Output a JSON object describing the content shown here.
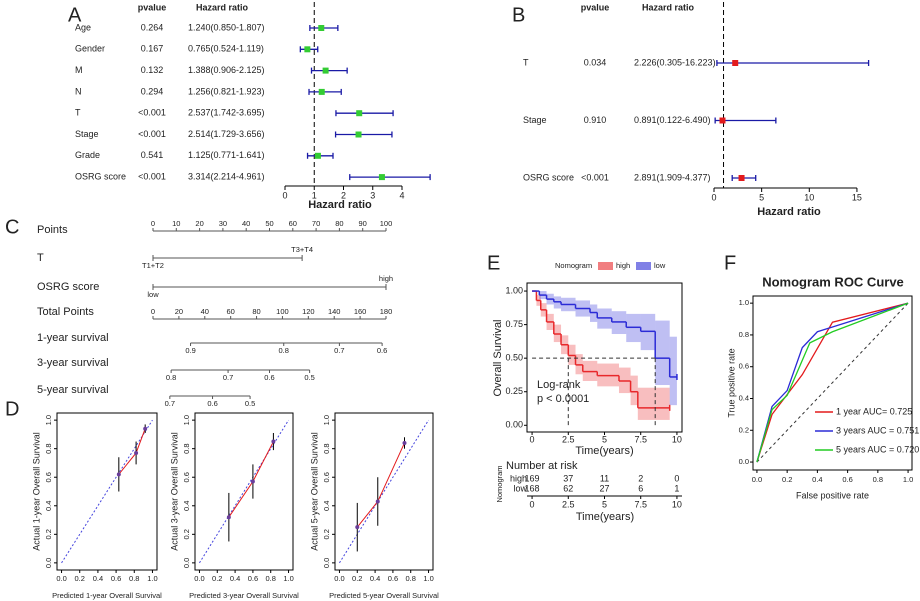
{
  "chart_data": [
    {
      "type": "forest",
      "panel": "A",
      "headers": [
        "pvalue",
        "Hazard ratio"
      ],
      "xlabel": "Hazard ratio",
      "xlim": [
        0,
        5
      ],
      "xticks": [
        0,
        1,
        2,
        3,
        4
      ],
      "reference": 1,
      "color": "#33cc33",
      "ci_color": "#1a1aa6",
      "rows": [
        {
          "name": "Age",
          "pvalue": "0.264",
          "hr": 1.24,
          "lower": 0.85,
          "upper": 1.807,
          "label": "1.240(0.850-1.807)"
        },
        {
          "name": "Gender",
          "pvalue": "0.167",
          "hr": 0.765,
          "lower": 0.524,
          "upper": 1.119,
          "label": "0.765(0.524-1.119)"
        },
        {
          "name": "M",
          "pvalue": "0.132",
          "hr": 1.388,
          "lower": 0.906,
          "upper": 2.125,
          "label": "1.388(0.906-2.125)"
        },
        {
          "name": "N",
          "pvalue": "0.294",
          "hr": 1.256,
          "lower": 0.821,
          "upper": 1.923,
          "label": "1.256(0.821-1.923)"
        },
        {
          "name": "T",
          "pvalue": "<0.001",
          "pvalue_color": "#e31a1c",
          "hr": 2.537,
          "lower": 1.742,
          "upper": 3.695,
          "label": "2.537(1.742-3.695)"
        },
        {
          "name": "Stage",
          "pvalue": "<0.001",
          "pvalue_color": "#e31a1c",
          "hr": 2.514,
          "lower": 1.729,
          "upper": 3.656,
          "label": "2.514(1.729-3.656)"
        },
        {
          "name": "Grade",
          "pvalue": "0.541",
          "hr": 1.125,
          "lower": 0.771,
          "upper": 1.641,
          "label": "1.125(0.771-1.641)"
        },
        {
          "name": "OSRG score",
          "pvalue": "<0.001",
          "pvalue_color": "#e31a1c",
          "hr": 3.314,
          "lower": 2.214,
          "upper": 4.961,
          "label": "3.314(2.214-4.961)"
        }
      ]
    },
    {
      "type": "forest",
      "panel": "B",
      "headers": [
        "pvalue",
        "Hazard ratio"
      ],
      "xlabel": "Hazard ratio",
      "xlim": [
        0,
        17
      ],
      "xticks": [
        0,
        5,
        10,
        15
      ],
      "reference": 1,
      "color": "#e31a1c",
      "ci_color": "#1a1aa6",
      "rows": [
        {
          "name": "T",
          "pvalue": "0.034",
          "pvalue_color": "#e31a1c",
          "hr": 2.226,
          "lower": 0.305,
          "upper": 16.223,
          "label": "2.226(0.305-16.223)"
        },
        {
          "name": "Stage",
          "pvalue": "0.910",
          "hr": 0.891,
          "lower": 0.122,
          "upper": 6.49,
          "label": "0.891(0.122-6.490)"
        },
        {
          "name": "OSRG score",
          "pvalue": "<0.001",
          "pvalue_color": "#e31a1c",
          "hr": 2.891,
          "lower": 1.909,
          "upper": 4.377,
          "label": "2.891(1.909-4.377)"
        }
      ]
    },
    {
      "type": "nomogram",
      "panel": "C",
      "points_label": "Points",
      "points_lim": [
        0,
        100
      ],
      "points_ticks": [
        0,
        10,
        20,
        30,
        40,
        50,
        60,
        70,
        80,
        90,
        100
      ],
      "variables": [
        {
          "name": "T",
          "levels": [
            "T1+T2",
            "T3+T4"
          ],
          "points": [
            0,
            64
          ]
        },
        {
          "name": "OSRG score",
          "levels": [
            "low",
            "high"
          ],
          "points": [
            0,
            100
          ]
        }
      ],
      "total_label": "Total Points",
      "total_lim": [
        0,
        180
      ],
      "total_ticks": [
        0,
        20,
        40,
        60,
        80,
        100,
        120,
        140,
        160,
        180
      ],
      "survival": [
        {
          "name": "1-year survival",
          "ticks": [
            0.9,
            0.8,
            0.7,
            0.6
          ],
          "total_points": [
            29,
            101,
            144,
            177
          ]
        },
        {
          "name": "3-year survival",
          "ticks": [
            0.8,
            0.7,
            0.6,
            0.5
          ],
          "total_points": [
            14,
            58,
            90,
            121
          ]
        },
        {
          "name": "5-year survival",
          "ticks": [
            0.7,
            0.6,
            0.5
          ],
          "total_points": [
            13,
            46,
            75
          ]
        }
      ]
    },
    {
      "type": "calibration",
      "panel": "D",
      "xlabel": "Predicted 1-year Overall Survival",
      "ylabel": "Actual 1-year Overall Survival",
      "x": [
        0.63,
        0.82,
        0.92
      ],
      "values": [
        0.62,
        0.77,
        0.94
      ],
      "errors": [
        0.12,
        0.08,
        0.03
      ],
      "color": "#e31a1c",
      "xlim": [
        -0.05,
        1.05
      ],
      "ylim": [
        -0.05,
        1.05
      ],
      "xticks": [
        {
          "value": 0,
          "label": "0.0"
        },
        0.2,
        0.4,
        0.6,
        0.8,
        {
          "value": 1,
          "label": "1.0"
        }
      ],
      "yticks": [
        {
          "value": 0,
          "label": "0.0"
        },
        0.2,
        0.4,
        0.6,
        0.8,
        {
          "value": 1,
          "label": "1.0"
        }
      ]
    },
    {
      "type": "calibration",
      "xlabel": "Predicted 3-year Overall Survival",
      "ylabel": "Actual 3-year Overall Survival",
      "x": [
        0.33,
        0.6,
        0.83
      ],
      "values": [
        0.32,
        0.57,
        0.85
      ],
      "errors": [
        0.17,
        0.12,
        0.06
      ],
      "color": "#e31a1c",
      "xlim": [
        -0.05,
        1.05
      ],
      "ylim": [
        -0.05,
        1.05
      ],
      "xticks": [
        {
          "value": 0,
          "label": "0.0"
        },
        0.2,
        0.4,
        0.6,
        0.8,
        {
          "value": 1,
          "label": "1.0"
        }
      ],
      "yticks": [
        {
          "value": 0,
          "label": "0.0"
        },
        0.2,
        0.4,
        0.6,
        0.8,
        {
          "value": 1,
          "label": "1.0"
        }
      ]
    },
    {
      "type": "calibration",
      "xlabel": "Predicted 5-year Overall Survival",
      "ylabel": "Actual 5-year Overall Survival",
      "x": [
        0.2,
        0.43,
        0.73
      ],
      "values": [
        0.25,
        0.43,
        0.84
      ],
      "errors": [
        0.17,
        0.17,
        0.04
      ],
      "color": "#e31a1c",
      "xlim": [
        -0.05,
        1.05
      ],
      "ylim": [
        -0.05,
        1.05
      ],
      "xticks": [
        {
          "value": 0,
          "label": "0.0"
        },
        0.2,
        0.4,
        0.6,
        0.8,
        {
          "value": 1,
          "label": "1.0"
        }
      ],
      "yticks": [
        {
          "value": 0,
          "label": "0.0"
        },
        0.2,
        0.4,
        0.6,
        0.8,
        {
          "value": 1,
          "label": "1.0"
        }
      ]
    },
    {
      "type": "survival",
      "panel": "E",
      "legend_title": "Nomogram",
      "xlabel": "Time(years)",
      "ylabel": "Overall Survival",
      "xlim": [
        -0.35,
        10.35
      ],
      "ylim": [
        -0.05,
        1.06
      ],
      "xticks": [
        0,
        2.5,
        5,
        7.5,
        10
      ],
      "yticks": [
        {
          "value": 0,
          "label": "0.00"
        },
        0.25,
        {
          "value": 0.5,
          "label": "0.50"
        },
        0.75,
        {
          "value": 1,
          "label": "1.00"
        }
      ],
      "annotation": [
        "Log-rank",
        "p < 0.0001"
      ],
      "median_level": 0.5,
      "medians": [
        2.5,
        8.5
      ],
      "risk_title": "Number at risk",
      "risk_ylabel": "Nomogram",
      "risk_xlabel": "Time(years)",
      "risk_xticks": [
        0,
        2.5,
        5,
        7.5,
        10
      ],
      "series": [
        {
          "name": "high",
          "color": "#e8282b",
          "at_risk": [
            169,
            37,
            11,
            2,
            0
          ],
          "x": [
            0,
            0.3,
            0.6,
            1,
            1.5,
            2,
            2.5,
            3,
            3.5,
            4.5,
            6,
            6.8,
            7.3,
            9.5
          ],
          "values": [
            1,
            0.93,
            0.86,
            0.77,
            0.68,
            0.6,
            0.52,
            0.45,
            0.4,
            0.37,
            0.33,
            0.25,
            0.13,
            0.13
          ],
          "lower": [
            1,
            0.89,
            0.81,
            0.71,
            0.62,
            0.53,
            0.45,
            0.38,
            0.33,
            0.29,
            0.24,
            0.15,
            0.04,
            0.04
          ],
          "upper": [
            1,
            0.97,
            0.91,
            0.83,
            0.75,
            0.67,
            0.6,
            0.53,
            0.48,
            0.46,
            0.43,
            0.37,
            0.28,
            0.28
          ]
        },
        {
          "name": "low",
          "color": "#2b2bd6",
          "at_risk": [
            168,
            62,
            27,
            6,
            1
          ],
          "x": [
            0,
            0.5,
            1,
            1.5,
            2,
            3,
            4,
            4.5,
            5.5,
            6.5,
            7.5,
            8.5,
            9.5,
            10
          ],
          "values": [
            1,
            0.97,
            0.94,
            0.92,
            0.9,
            0.87,
            0.84,
            0.8,
            0.77,
            0.73,
            0.7,
            0.5,
            0.36,
            0.36
          ],
          "lower": [
            1,
            0.94,
            0.9,
            0.87,
            0.85,
            0.81,
            0.77,
            0.72,
            0.68,
            0.62,
            0.56,
            0.3,
            0.15,
            0.15
          ],
          "upper": [
            1,
            1,
            0.98,
            0.96,
            0.95,
            0.93,
            0.9,
            0.87,
            0.85,
            0.83,
            0.83,
            0.78,
            0.66,
            0.66
          ]
        }
      ]
    },
    {
      "type": "roc",
      "panel": "F",
      "title": "Nomogram ROC Curve",
      "xlabel": "False positive rate",
      "ylabel": "True positive rate",
      "xlim": [
        -0.026,
        1.026
      ],
      "ylim": [
        -0.05,
        1.045
      ],
      "xticks": [
        {
          "value": 0,
          "label": "0.0"
        },
        0.2,
        0.4,
        0.6,
        0.8,
        {
          "value": 1,
          "label": "1.0"
        }
      ],
      "yticks": [
        {
          "value": 0,
          "label": "0.0"
        },
        0.2,
        0.4,
        0.6,
        0.8,
        {
          "value": 1,
          "label": "1.0"
        }
      ],
      "series": [
        {
          "name": "1 year AUC= 0.725",
          "color": "#e31a1c",
          "x": [
            0,
            0.1,
            0.3,
            0.5,
            1
          ],
          "values": [
            0,
            0.3,
            0.55,
            0.88,
            1
          ]
        },
        {
          "name": "3 years AUC = 0.751",
          "color": "#2b2bd6",
          "x": [
            0,
            0.1,
            0.2,
            0.3,
            0.4,
            0.5,
            1
          ],
          "values": [
            0,
            0.35,
            0.45,
            0.72,
            0.82,
            0.85,
            1
          ]
        },
        {
          "name": "5 years AUC = 0.720",
          "color": "#22cc22",
          "x": [
            0,
            0.1,
            0.2,
            0.35,
            0.5,
            1
          ],
          "values": [
            0,
            0.33,
            0.42,
            0.75,
            0.82,
            1
          ]
        }
      ]
    }
  ]
}
